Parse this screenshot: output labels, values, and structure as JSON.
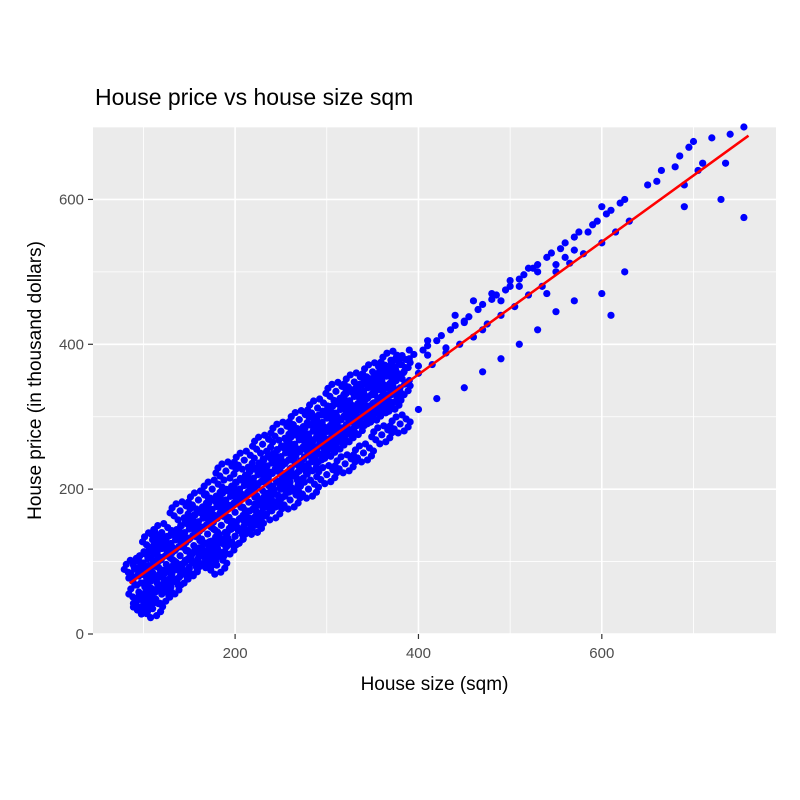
{
  "chart_data": {
    "type": "scatter",
    "title": "House price vs house size sqm",
    "xlabel": "House size (sqm)",
    "ylabel": "House price (in thousand dollars)",
    "xlim": [
      45,
      790
    ],
    "ylim": [
      0,
      700
    ],
    "x_ticks": [
      200,
      400,
      600
    ],
    "y_ticks": [
      0,
      200,
      400,
      600
    ],
    "x_tick_labels": [
      "200",
      "400",
      "600"
    ],
    "y_tick_labels": [
      "0",
      "200",
      "400",
      "600"
    ],
    "grid": true,
    "legend": "none",
    "series": [
      {
        "kind": "points",
        "color": "#0000ff",
        "x": [
          90,
          95,
          100,
          105,
          110,
          115,
          120,
          125,
          130,
          135,
          140,
          145,
          150,
          155,
          160,
          165,
          170,
          175,
          180,
          185,
          190,
          195,
          200,
          205,
          210,
          215,
          220,
          225,
          230,
          235,
          240,
          245,
          250,
          255,
          260,
          265,
          270,
          275,
          280,
          285,
          290,
          295,
          300,
          305,
          310,
          315,
          320,
          325,
          330,
          335,
          340,
          345,
          350,
          360,
          365,
          370,
          375,
          380,
          385,
          390,
          395,
          400,
          405,
          410,
          415,
          420,
          425,
          430,
          435,
          440,
          445,
          450,
          455,
          460,
          465,
          470,
          475,
          480,
          485,
          490,
          495,
          500,
          505,
          510,
          515,
          520,
          525,
          530,
          535,
          540,
          545,
          550,
          555,
          560,
          565,
          570,
          575,
          580,
          590,
          595,
          600,
          605,
          610,
          615,
          620,
          625,
          630,
          660,
          665,
          680,
          685,
          690,
          695,
          700,
          705,
          720,
          735,
          755,
          755,
          95,
          100,
          110,
          115,
          120,
          130,
          140,
          150,
          160,
          170,
          175,
          180,
          190,
          200,
          210,
          220,
          230,
          240,
          250,
          260,
          270,
          280,
          290,
          300,
          310,
          320,
          330,
          340,
          350,
          360,
          370,
          380,
          390,
          400,
          410,
          420,
          440,
          450,
          460,
          470,
          480,
          490,
          500,
          510,
          520,
          530,
          540,
          550,
          560,
          570,
          585,
          600,
          610,
          625,
          650,
          690,
          710,
          730,
          740,
          100,
          110,
          120,
          130,
          140,
          150,
          160,
          170,
          180,
          190,
          200,
          210,
          220,
          230,
          240,
          250,
          260,
          270,
          280,
          290,
          300,
          310,
          320,
          330,
          340,
          350,
          360,
          370,
          380,
          390,
          400,
          410,
          430,
          450,
          470,
          490,
          510,
          530,
          550,
          570,
          600
        ],
        "y": [
          92,
          80,
          98,
          104,
          85,
          112,
          118,
          96,
          125,
          130,
          108,
          140,
          145,
          122,
          155,
          160,
          138,
          172,
          176,
          150,
          185,
          190,
          168,
          200,
          205,
          182,
          215,
          220,
          198,
          232,
          236,
          212,
          245,
          250,
          228,
          262,
          268,
          242,
          276,
          280,
          258,
          292,
          298,
          270,
          305,
          310,
          286,
          322,
          328,
          300,
          335,
          340,
          318,
          350,
          356,
          330,
          365,
          372,
          345,
          380,
          386,
          360,
          392,
          398,
          372,
          405,
          412,
          388,
          420,
          426,
          400,
          432,
          438,
          410,
          448,
          455,
          428,
          462,
          468,
          440,
          475,
          480,
          452,
          490,
          496,
          468,
          505,
          510,
          480,
          520,
          526,
          500,
          532,
          540,
          512,
          548,
          555,
          525,
          565,
          570,
          540,
          580,
          585,
          555,
          595,
          600,
          570,
          625,
          640,
          645,
          660,
          620,
          672,
          680,
          640,
          685,
          650,
          700,
          575,
          58,
          45,
          130,
          70,
          140,
          82,
          170,
          92,
          185,
          104,
          200,
          118,
          225,
          135,
          240,
          150,
          262,
          170,
          280,
          185,
          296,
          200,
          312,
          220,
          335,
          235,
          348,
          250,
          362,
          275,
          378,
          290,
          392,
          310,
          405,
          325,
          440,
          340,
          460,
          362,
          470,
          380,
          488,
          400,
          505,
          420,
          470,
          445,
          520,
          460,
          555,
          470,
          440,
          500,
          620,
          590,
          650,
          600,
          690,
          40,
          35,
          55,
          65,
          80,
          90,
          105,
          115,
          95,
          120,
          135,
          150,
          160,
          175,
          185,
          200,
          210,
          225,
          235,
          250,
          255,
          265,
          275,
          285,
          300,
          305,
          315,
          320,
          340,
          350,
          370,
          385,
          395,
          430,
          420,
          460,
          480,
          500,
          510,
          530,
          590
        ]
      },
      {
        "kind": "fit-line",
        "color": "#ff0000",
        "x": [
          85,
          760
        ],
        "y": [
          70,
          688
        ]
      }
    ]
  }
}
